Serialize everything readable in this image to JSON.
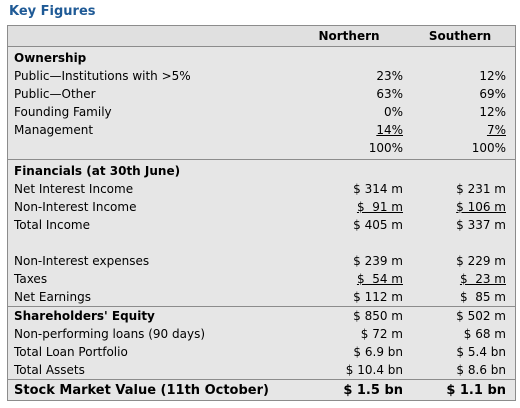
{
  "title": "Key Figures",
  "columns": {
    "label": "",
    "c1": "Northern",
    "c2": "Southern"
  },
  "ownership": {
    "heading": "Ownership",
    "rows": [
      {
        "label": "Public—Institutions with >5%",
        "c1": "23%",
        "c2": "12%"
      },
      {
        "label": "Public—Other",
        "c1": "63%",
        "c2": "69%"
      },
      {
        "label": "Founding Family",
        "c1": "0%",
        "c2": "12%"
      },
      {
        "label": "Management",
        "c1": "14%",
        "c2": "7%"
      },
      {
        "label": "",
        "c1": "100%",
        "c2": "100%"
      }
    ]
  },
  "financials": {
    "heading": "Financials (at 30th June)",
    "rows": [
      {
        "label": "Net Interest Income",
        "c1": "$ 314 m",
        "c2": "$ 231 m"
      },
      {
        "label": "Non-Interest Income",
        "c1": "$  91 m",
        "c2": "$ 106 m"
      },
      {
        "label": "Total Income",
        "c1": "$ 405 m",
        "c2": "$ 337 m"
      },
      {
        "label": "Non-Interest expenses",
        "c1": "$ 239 m",
        "c2": "$ 229 m"
      },
      {
        "label": "Taxes",
        "c1": "$  54 m",
        "c2": "$  23 m"
      },
      {
        "label": "Net Earnings",
        "c1": "$ 112 m",
        "c2": "$  85 m"
      }
    ]
  },
  "equity": {
    "heading": "Shareholders' Equity",
    "heading_c1": "$ 850 m",
    "heading_c2": "$ 502 m",
    "rows": [
      {
        "label": "Non-performing loans (90 days)",
        "c1": "$ 72 m",
        "c2": "$ 68 m"
      },
      {
        "label": "Total Loan Portfolio",
        "c1": "$ 6.9 bn",
        "c2": "$ 5.4 bn"
      },
      {
        "label": "Total Assets",
        "c1": "$ 10.4 bn",
        "c2": "$ 8.6 bn"
      }
    ]
  },
  "stock": {
    "label": "Stock Market Value (11th October)",
    "c1": "$ 1.5 bn",
    "c2": "$ 1.1 bn"
  }
}
